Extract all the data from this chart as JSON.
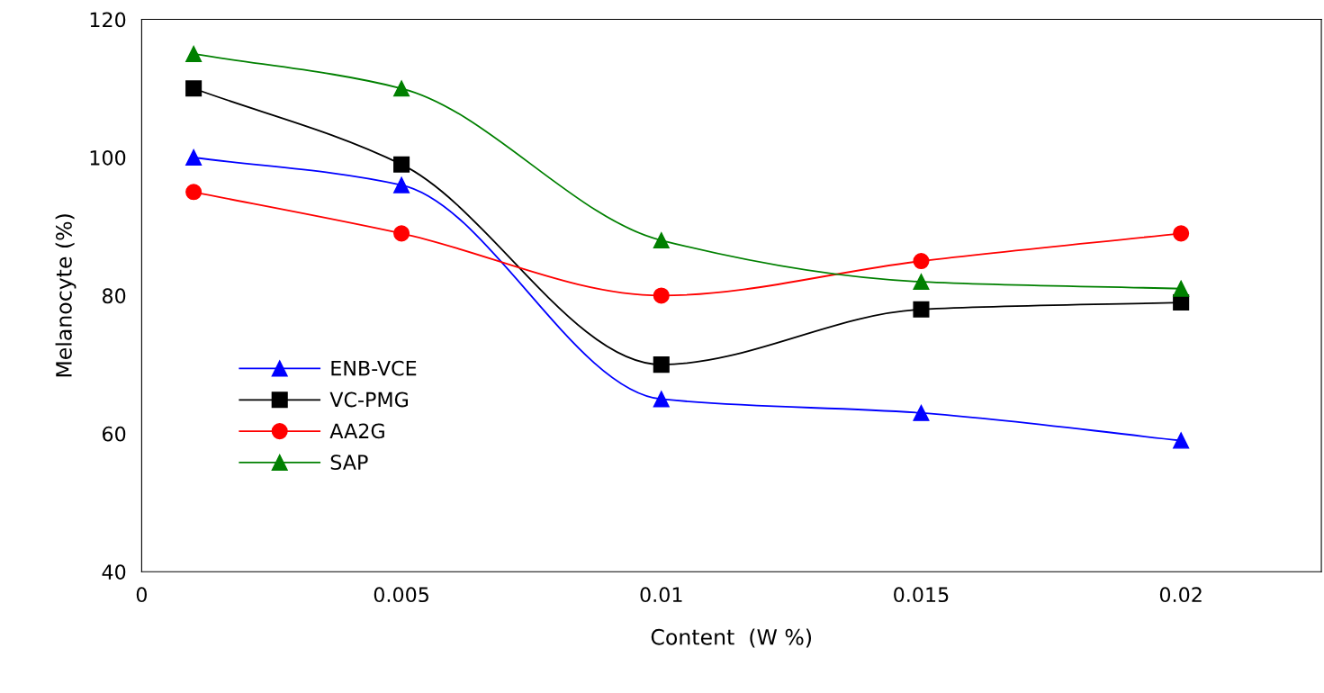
{
  "chart_data": {
    "type": "line",
    "xlabel": "Content  (W %)",
    "ylabel": "Melanocyte (%)",
    "x": [
      0.001,
      0.005,
      0.01,
      0.015,
      0.02
    ],
    "series": [
      {
        "name": "ENB-VCE",
        "color": "#0000ff",
        "marker": "triangle",
        "values": [
          100,
          96,
          65,
          63,
          59
        ]
      },
      {
        "name": "VC-PMG",
        "color": "#000000",
        "marker": "square",
        "values": [
          110,
          99,
          70,
          78,
          79
        ]
      },
      {
        "name": "AA2G",
        "color": "#ff0000",
        "marker": "circle",
        "values": [
          95,
          89,
          80,
          85,
          89
        ]
      },
      {
        "name": "SAP",
        "color": "#008000",
        "marker": "triangle",
        "values": [
          115,
          110,
          88,
          82,
          81
        ]
      }
    ],
    "xlim": [
      0,
      0.0227
    ],
    "xticks": [
      0,
      0.005,
      0.01,
      0.015,
      0.02
    ],
    "ylim": [
      40,
      120
    ],
    "yticks": [
      40,
      60,
      80,
      100,
      120
    ],
    "grid": false,
    "legend": "lower left",
    "line_style": "solid"
  }
}
